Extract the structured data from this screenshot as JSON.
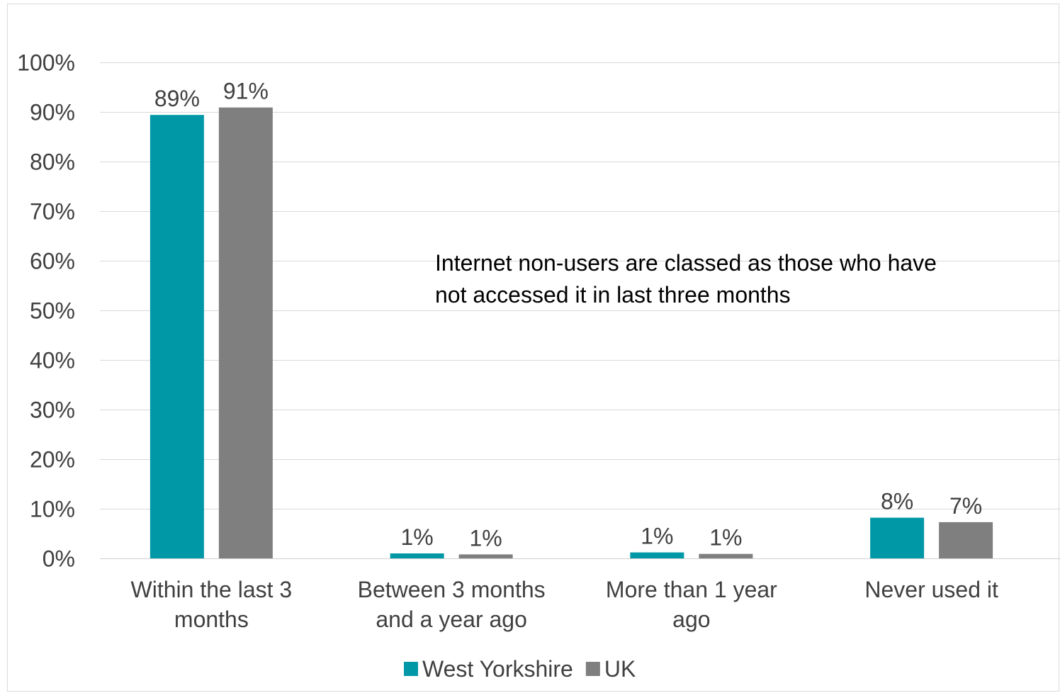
{
  "chart_data": {
    "type": "bar",
    "title": "",
    "xlabel": "",
    "ylabel": "",
    "ylim": [
      0,
      100
    ],
    "ytick_step": 10,
    "ytick_suffix": "%",
    "grid": true,
    "legend_position": "bottom",
    "categories": [
      [
        "Within the last 3",
        "months"
      ],
      [
        "Between 3 months",
        "and a year ago"
      ],
      [
        "More than 1 year",
        "ago"
      ],
      [
        "Never used it"
      ]
    ],
    "series": [
      {
        "name": "West Yorkshire",
        "color": "#0097A7",
        "values": [
          89.4,
          1.0,
          1.2,
          8.2
        ],
        "labels": [
          "89%",
          "1%",
          "1%",
          "8%"
        ]
      },
      {
        "name": "UK",
        "color": "#7F7F7F",
        "values": [
          90.9,
          0.8,
          0.9,
          7.3
        ],
        "labels": [
          "91%",
          "1%",
          "1%",
          "7%"
        ]
      }
    ],
    "annotation": [
      "Internet non-users are classed as those who have",
      "not accessed it in last three months"
    ]
  }
}
